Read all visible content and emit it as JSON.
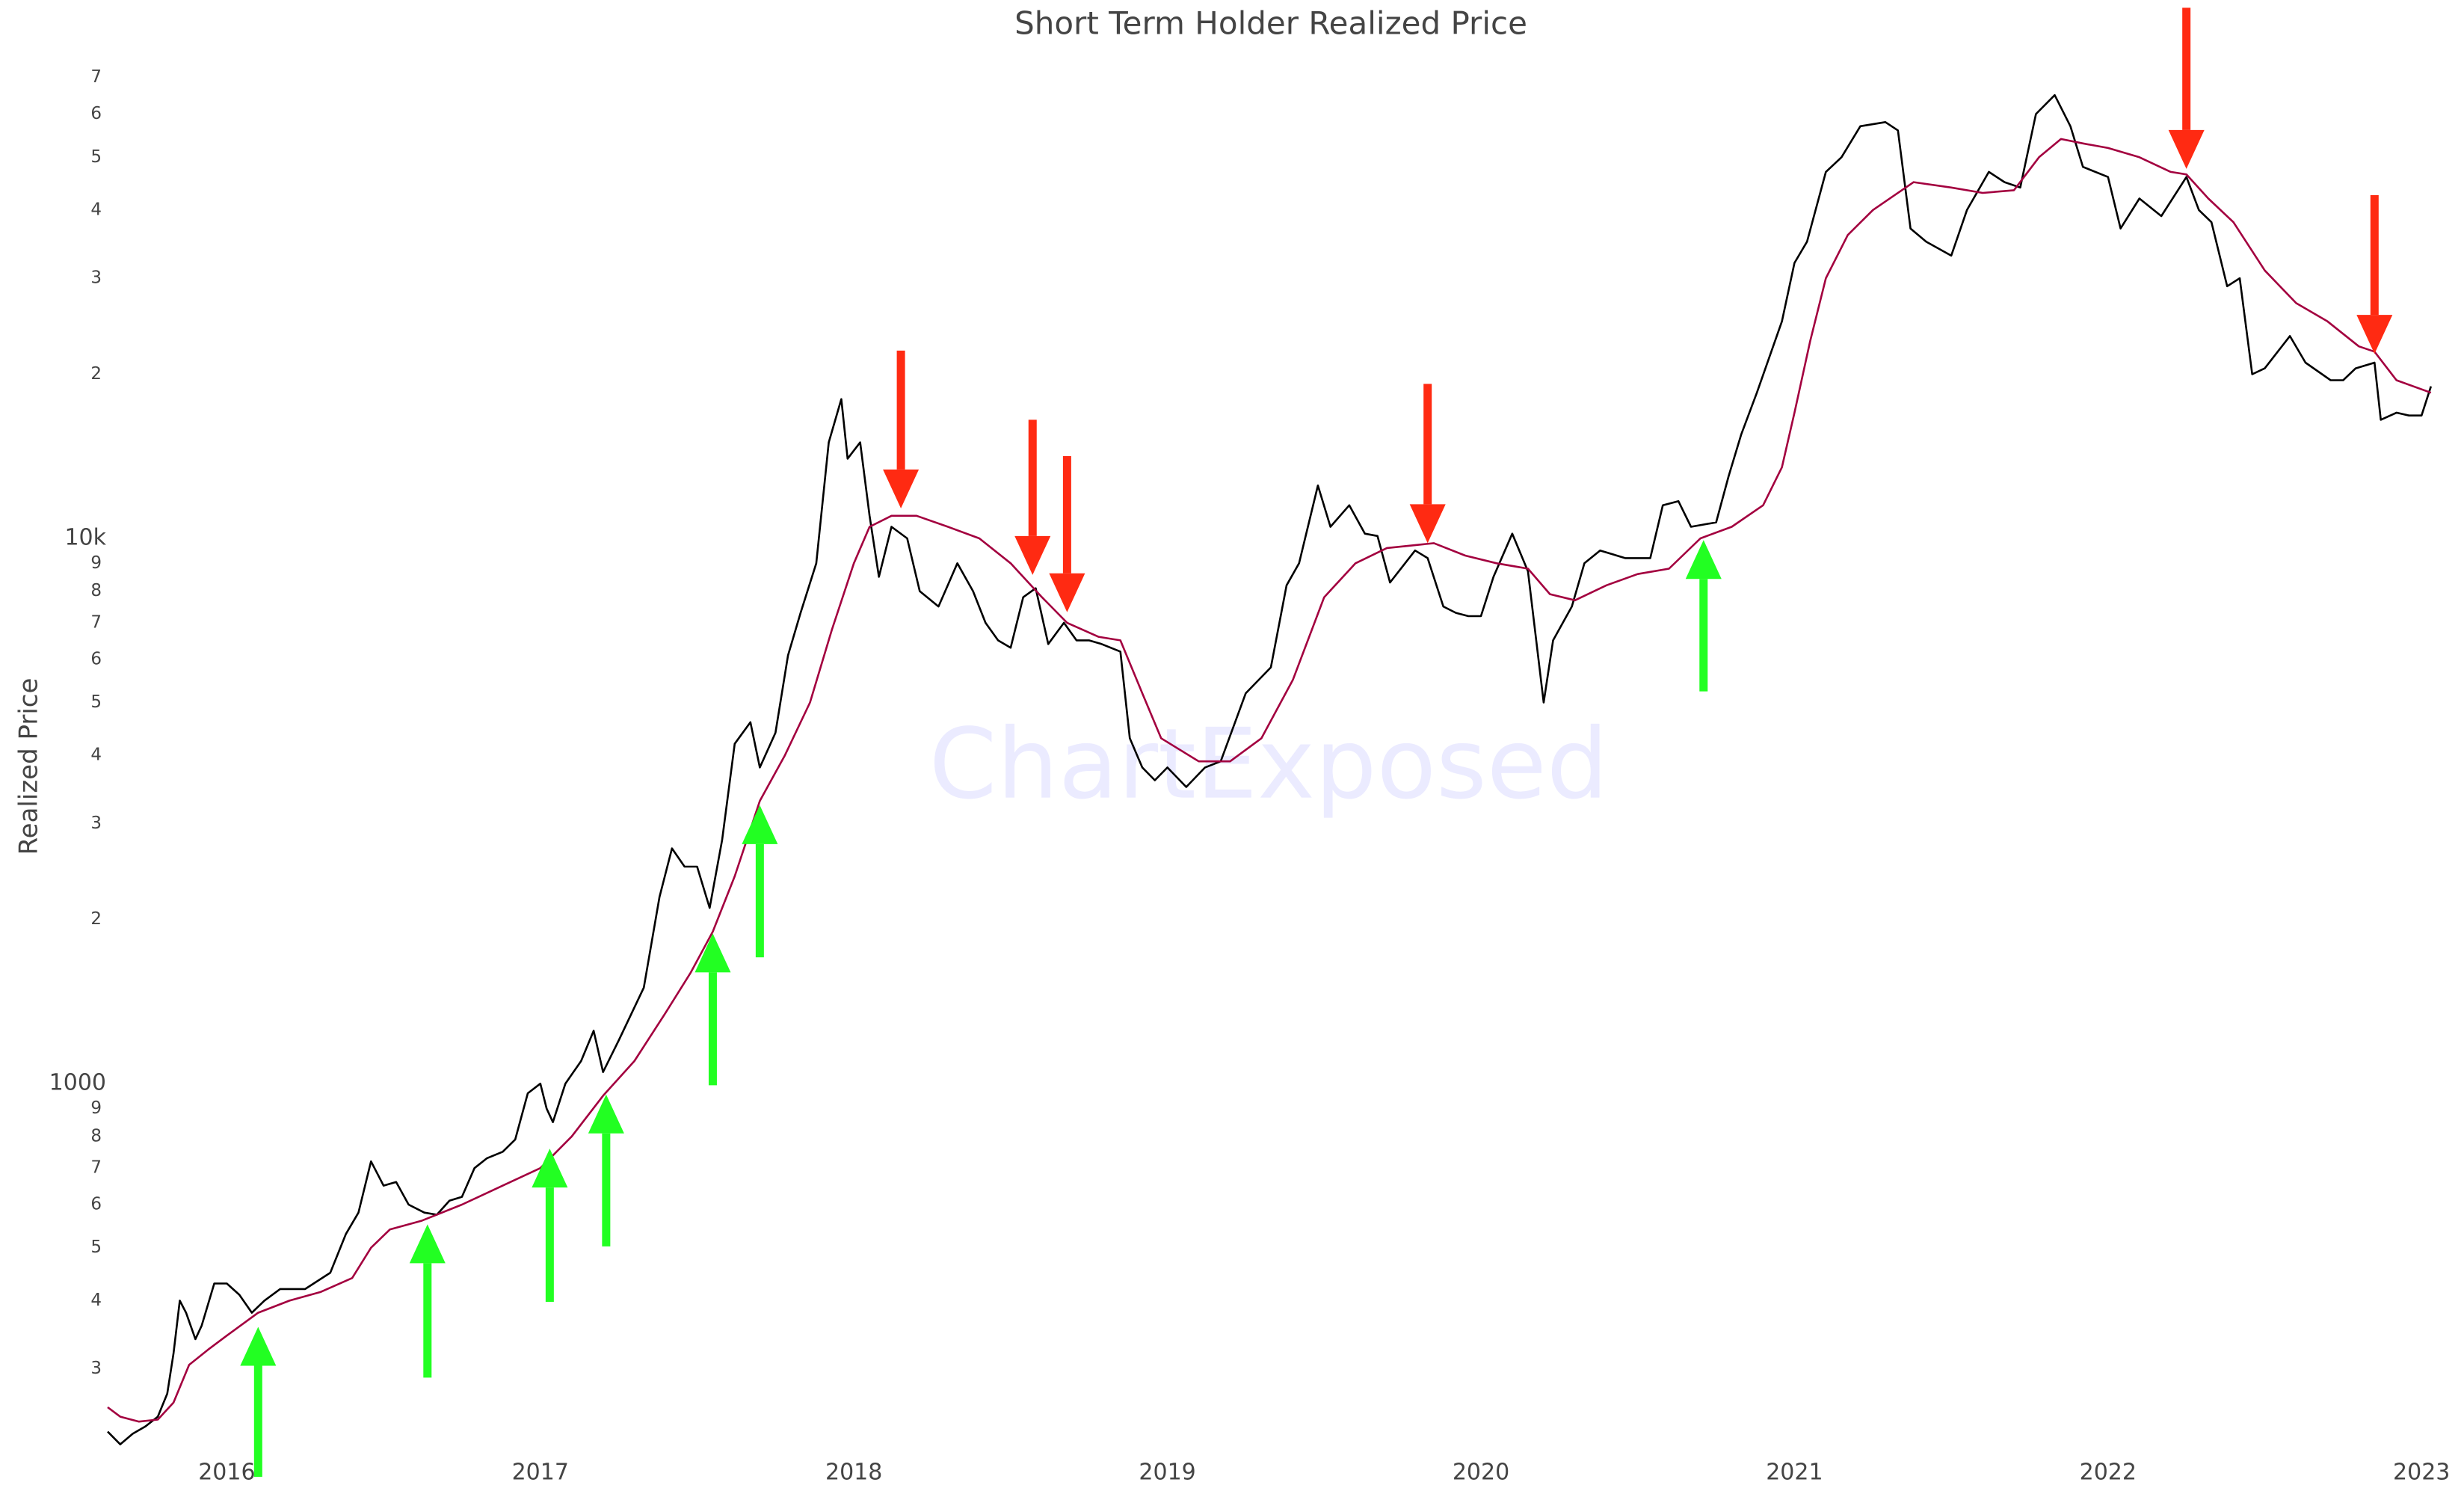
{
  "chart_data": {
    "type": "line",
    "title": "Short Term Holder Realized Price",
    "ylabel": "Realized Price",
    "watermark": "ChartExposed",
    "log_y": true,
    "grid": false,
    "xlim": [
      2015.62,
      2023.04
    ],
    "xticks": [
      2016,
      2017,
      2018,
      2019,
      2020,
      2021,
      2022,
      2023
    ],
    "ylim": [
      215,
      95000
    ],
    "yticks": [
      {
        "value": 300,
        "label": "3"
      },
      {
        "value": 400,
        "label": "4"
      },
      {
        "value": 500,
        "label": "5"
      },
      {
        "value": 600,
        "label": "6"
      },
      {
        "value": 700,
        "label": "7"
      },
      {
        "value": 800,
        "label": "8"
      },
      {
        "value": 900,
        "label": "9"
      },
      1000,
      {
        "value": 2000,
        "label": "2"
      },
      {
        "value": 3000,
        "label": "3"
      },
      {
        "value": 4000,
        "label": "4"
      },
      {
        "value": 5000,
        "label": "5"
      },
      {
        "value": 6000,
        "label": "6"
      },
      {
        "value": 7000,
        "label": "7"
      },
      {
        "value": 8000,
        "label": "8"
      },
      {
        "value": 9000,
        "label": "9"
      },
      {
        "value": 10000,
        "label": "10k"
      },
      {
        "value": 20000,
        "label": "2"
      },
      {
        "value": 30000,
        "label": "3"
      },
      {
        "value": 40000,
        "label": "4"
      },
      {
        "value": 50000,
        "label": "5"
      },
      {
        "value": 60000,
        "label": "6"
      },
      {
        "value": 70000,
        "label": "7"
      }
    ],
    "series": [
      {
        "color": "#000000",
        "x": [
          2015.62,
          2015.66,
          2015.7,
          2015.74,
          2015.78,
          2015.81,
          2015.83,
          2015.85,
          2015.87,
          2015.9,
          2015.92,
          2015.96,
          2016.0,
          2016.04,
          2016.08,
          2016.12,
          2016.17,
          2016.25,
          2016.33,
          2016.38,
          2016.42,
          2016.46,
          2016.5,
          2016.54,
          2016.58,
          2016.63,
          2016.67,
          2016.71,
          2016.75,
          2016.79,
          2016.83,
          2016.88,
          2016.92,
          2016.96,
          2017.0,
          2017.02,
          2017.04,
          2017.08,
          2017.13,
          2017.17,
          2017.2,
          2017.25,
          2017.33,
          2017.38,
          2017.42,
          2017.46,
          2017.5,
          2017.54,
          2017.58,
          2017.62,
          2017.67,
          2017.7,
          2017.75,
          2017.79,
          2017.83,
          2017.88,
          2017.92,
          2017.96,
          2017.98,
          2018.02,
          2018.05,
          2018.08,
          2018.12,
          2018.17,
          2018.21,
          2018.27,
          2018.33,
          2018.38,
          2018.42,
          2018.46,
          2018.5,
          2018.54,
          2018.58,
          2018.62,
          2018.67,
          2018.71,
          2018.75,
          2018.79,
          2018.85,
          2018.88,
          2018.92,
          2018.96,
          2019.0,
          2019.06,
          2019.12,
          2019.17,
          2019.25,
          2019.33,
          2019.38,
          2019.42,
          2019.48,
          2019.52,
          2019.58,
          2019.63,
          2019.67,
          2019.71,
          2019.79,
          2019.83,
          2019.88,
          2019.92,
          2019.96,
          2020.0,
          2020.04,
          2020.1,
          2020.15,
          2020.2,
          2020.23,
          2020.29,
          2020.33,
          2020.38,
          2020.46,
          2020.54,
          2020.58,
          2020.63,
          2020.67,
          2020.75,
          2020.79,
          2020.83,
          2020.88,
          2020.96,
          2021.0,
          2021.04,
          2021.1,
          2021.15,
          2021.21,
          2021.29,
          2021.33,
          2021.37,
          2021.42,
          2021.5,
          2021.55,
          2021.62,
          2021.67,
          2021.72,
          2021.77,
          2021.83,
          2021.88,
          2021.92,
          2022.0,
          2022.04,
          2022.1,
          2022.17,
          2022.25,
          2022.29,
          2022.33,
          2022.38,
          2022.42,
          2022.46,
          2022.5,
          2022.58,
          2022.63,
          2022.71,
          2022.75,
          2022.79,
          2022.85,
          2022.87,
          2022.92,
          2022.96,
          2023.0,
          2023.03
        ],
        "values": [
          230,
          218,
          228,
          235,
          245,
          270,
          320,
          400,
          380,
          340,
          360,
          430,
          430,
          410,
          380,
          400,
          420,
          420,
          450,
          530,
          580,
          720,
          650,
          660,
          600,
          580,
          575,
          610,
          620,
          700,
          730,
          750,
          790,
          960,
          1000,
          900,
          850,
          1000,
          1100,
          1250,
          1050,
          1200,
          1500,
          2200,
          2700,
          2500,
          2500,
          2100,
          2800,
          4200,
          4600,
          3800,
          4400,
          6100,
          7300,
          9000,
          15000,
          18000,
          14000,
          15000,
          11000,
          8500,
          10500,
          10000,
          8000,
          7500,
          9000,
          8000,
          7000,
          6500,
          6300,
          7800,
          8100,
          6400,
          7000,
          6500,
          6500,
          6400,
          6200,
          4300,
          3800,
          3600,
          3800,
          3500,
          3800,
          3900,
          5200,
          5800,
          8200,
          9000,
          12500,
          10500,
          11500,
          10200,
          10100,
          8300,
          9500,
          9200,
          7500,
          7300,
          7200,
          7200,
          8500,
          10200,
          8700,
          5000,
          6500,
          7500,
          9000,
          9500,
          9200,
          9200,
          11500,
          11700,
          10500,
          10700,
          13000,
          15500,
          18500,
          25000,
          32000,
          35000,
          47000,
          50000,
          57000,
          58000,
          56000,
          37000,
          35000,
          33000,
          40000,
          47000,
          45000,
          44000,
          60000,
          65000,
          57000,
          48000,
          46000,
          37000,
          42000,
          39000,
          46000,
          40000,
          38000,
          29000,
          30000,
          20000,
          20500,
          23500,
          21000,
          19500,
          19500,
          20500,
          21000,
          16500,
          17000,
          16800,
          16800,
          19000
        ]
      },
      {
        "color": "#a3003f",
        "x": [
          2015.62,
          2015.66,
          2015.72,
          2015.78,
          2015.83,
          2015.88,
          2015.94,
          2016.0,
          2016.1,
          2016.2,
          2016.3,
          2016.4,
          2016.46,
          2016.52,
          2016.62,
          2016.75,
          2016.88,
          2017.0,
          2017.1,
          2017.2,
          2017.3,
          2017.4,
          2017.48,
          2017.55,
          2017.62,
          2017.7,
          2017.78,
          2017.86,
          2017.93,
          2018.0,
          2018.05,
          2018.12,
          2018.2,
          2018.3,
          2018.4,
          2018.5,
          2018.6,
          2018.68,
          2018.78,
          2018.85,
          2018.92,
          2018.98,
          2019.1,
          2019.2,
          2019.3,
          2019.4,
          2019.5,
          2019.6,
          2019.7,
          2019.85,
          2019.95,
          2020.05,
          2020.15,
          2020.22,
          2020.3,
          2020.4,
          2020.5,
          2020.6,
          2020.7,
          2020.8,
          2020.9,
          2020.96,
          2021.0,
          2021.05,
          2021.1,
          2021.17,
          2021.25,
          2021.38,
          2021.5,
          2021.6,
          2021.7,
          2021.78,
          2021.85,
          2021.92,
          2022.0,
          2022.1,
          2022.2,
          2022.25,
          2022.32,
          2022.4,
          2022.5,
          2022.6,
          2022.7,
          2022.8,
          2022.85,
          2022.92,
          2023.03
        ],
        "values": [
          255,
          245,
          240,
          242,
          260,
          305,
          325,
          345,
          380,
          400,
          415,
          440,
          500,
          540,
          560,
          600,
          650,
          700,
          800,
          950,
          1100,
          1350,
          1600,
          1900,
          2400,
          3300,
          4000,
          5000,
          6800,
          9000,
          10500,
          11000,
          11000,
          10500,
          10000,
          9000,
          7800,
          7000,
          6600,
          6500,
          5200,
          4300,
          3900,
          3900,
          4300,
          5500,
          7800,
          9000,
          9600,
          9800,
          9300,
          9000,
          8800,
          7900,
          7700,
          8200,
          8600,
          8800,
          10000,
          10500,
          11500,
          13500,
          17000,
          23000,
          30000,
          36000,
          40000,
          45000,
          44000,
          43000,
          43500,
          50000,
          54000,
          53000,
          52000,
          50000,
          47000,
          46500,
          42000,
          38000,
          31000,
          27000,
          25000,
          22500,
          22000,
          19500,
          18500
        ]
      }
    ],
    "arrows": [
      {
        "x": 2016.1,
        "from": 190,
        "to": 358,
        "color": "#22ff22"
      },
      {
        "x": 2016.64,
        "from": 289,
        "to": 552,
        "color": "#22ff22"
      },
      {
        "x": 2017.03,
        "from": 398,
        "to": 760,
        "color": "#22ff22"
      },
      {
        "x": 2017.21,
        "from": 503,
        "to": 955,
        "color": "#22ff22"
      },
      {
        "x": 2017.55,
        "from": 993,
        "to": 1885,
        "color": "#22ff22"
      },
      {
        "x": 2017.7,
        "from": 1705,
        "to": 3240,
        "color": "#22ff22"
      },
      {
        "x": 2020.71,
        "from": 5240,
        "to": 9930,
        "color": "#22ff22"
      },
      {
        "x": 2018.15,
        "from": 22100,
        "to": 11350,
        "color": "#ff2a12"
      },
      {
        "x": 2018.57,
        "from": 16500,
        "to": 8570,
        "color": "#ff2a12"
      },
      {
        "x": 2018.68,
        "from": 14150,
        "to": 7320,
        "color": "#ff2a12"
      },
      {
        "x": 2019.83,
        "from": 19200,
        "to": 9800,
        "color": "#ff2a12"
      },
      {
        "x": 2022.25,
        "from": 94000,
        "to": 47600,
        "color": "#ff2a12"
      },
      {
        "x": 2022.85,
        "from": 42600,
        "to": 21800,
        "color": "#ff2a12"
      }
    ]
  }
}
